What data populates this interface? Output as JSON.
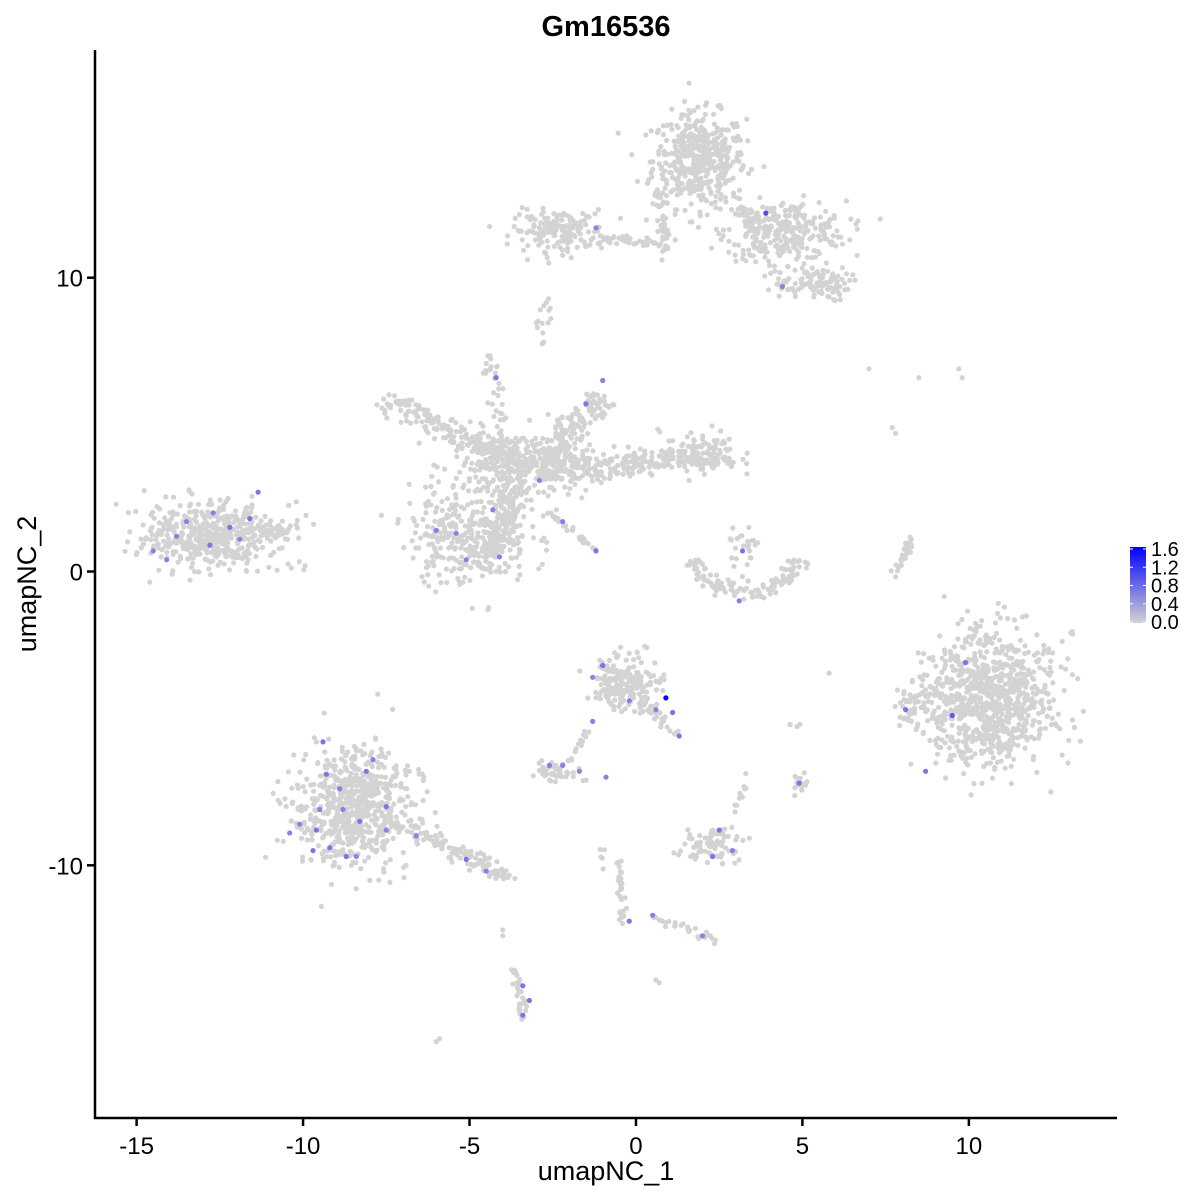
{
  "chart_data": {
    "type": "scatter",
    "title": "Gm16536",
    "xlabel": "umapNC_1",
    "ylabel": "umapNC_2",
    "xlim": [
      -16.25,
      14.45
    ],
    "ylim": [
      -18.6,
      17.75
    ],
    "xticks": [
      -15,
      -10,
      -5,
      0,
      5,
      10
    ],
    "xtick_labels": [
      "-15",
      "-10",
      "-5",
      "0",
      "5",
      "10"
    ],
    "yticks": [
      -10,
      0,
      10
    ],
    "ytick_labels": [
      "-10",
      "0",
      "10"
    ],
    "grid": false,
    "legend": {
      "placement": "right",
      "type": "colorbar",
      "min": 0,
      "max": 1.6,
      "ticks": [
        "0.0",
        "0.4",
        "0.8",
        "1.2",
        "1.6"
      ],
      "low_color": "#D3D3D3",
      "high_color": "#0000FF"
    },
    "clusters": [
      {
        "shape": "blob",
        "center": [
          1.9,
          14.0
        ],
        "sd": [
          0.7,
          0.8
        ],
        "n": 450,
        "value": 0
      },
      {
        "shape": "blob",
        "center": [
          4.5,
          11.6
        ],
        "sd": [
          0.9,
          0.5
        ],
        "n": 280,
        "value": 0
      },
      {
        "shape": "blob",
        "center": [
          5.4,
          9.8
        ],
        "sd": [
          0.5,
          0.3
        ],
        "n": 90,
        "value": 0
      },
      {
        "shape": "line",
        "from": [
          3.0,
          12.8
        ],
        "to": [
          4.5,
          9.5
        ],
        "width": 0.35,
        "n": 60,
        "value": 0
      },
      {
        "shape": "blob",
        "center": [
          -2.3,
          11.6
        ],
        "sd": [
          0.7,
          0.35
        ],
        "n": 170,
        "value": 0
      },
      {
        "shape": "line",
        "from": [
          -1.0,
          11.3
        ],
        "to": [
          0.8,
          11.2
        ],
        "width": 0.15,
        "n": 40,
        "value": 0
      },
      {
        "shape": "line",
        "from": [
          0.7,
          13.0
        ],
        "to": [
          0.9,
          10.8
        ],
        "width": 0.2,
        "n": 40,
        "value": 0
      },
      {
        "shape": "blob",
        "center": [
          -2.8,
          8.7
        ],
        "sd": [
          0.15,
          0.4
        ],
        "n": 15,
        "value": 0
      },
      {
        "shape": "blob",
        "center": [
          -3.5,
          3.6
        ],
        "sd": [
          1.0,
          0.6
        ],
        "n": 300,
        "value": 0
      },
      {
        "shape": "line",
        "from": [
          -3.5,
          3.6
        ],
        "to": [
          -7.5,
          5.8
        ],
        "width": 0.45,
        "n": 200,
        "value": 0
      },
      {
        "shape": "line",
        "from": [
          -4.0,
          4.0
        ],
        "to": [
          -4.4,
          7.5
        ],
        "width": 0.2,
        "n": 40,
        "value": 0
      },
      {
        "shape": "line",
        "from": [
          -3.0,
          3.4
        ],
        "to": [
          -1.0,
          6.0
        ],
        "width": 0.5,
        "n": 180,
        "value": 0
      },
      {
        "shape": "line",
        "from": [
          -2.5,
          3.4
        ],
        "to": [
          2.5,
          4.0
        ],
        "width": 0.5,
        "n": 240,
        "value": 0
      },
      {
        "shape": "blob",
        "center": [
          1.9,
          4.0
        ],
        "sd": [
          0.6,
          0.4
        ],
        "n": 90,
        "value": 0
      },
      {
        "shape": "blob",
        "center": [
          -5.0,
          1.2
        ],
        "sd": [
          0.9,
          0.8
        ],
        "n": 330,
        "value": 0
      },
      {
        "shape": "line",
        "from": [
          -3.5,
          3.0
        ],
        "to": [
          -4.5,
          0.5
        ],
        "width": 0.45,
        "n": 120,
        "value": 0
      },
      {
        "shape": "line",
        "from": [
          -2.6,
          2.0
        ],
        "to": [
          -1.2,
          0.7
        ],
        "width": 0.08,
        "n": 25,
        "value": 0
      },
      {
        "shape": "blob",
        "center": [
          -12.7,
          1.2
        ],
        "sd": [
          1.0,
          0.55
        ],
        "n": 480,
        "value": 0
      },
      {
        "shape": "line",
        "from": [
          -11.5,
          1.3
        ],
        "to": [
          -10.5,
          1.4
        ],
        "width": 0.2,
        "n": 30,
        "value": 0
      },
      {
        "shape": "arc",
        "center": [
          3.3,
          0.6
        ],
        "radius": 1.6,
        "angles": [
          190,
          350
        ],
        "width": 0.35,
        "n": 130,
        "value": 0
      },
      {
        "shape": "blob",
        "center": [
          3.2,
          0.8
        ],
        "sd": [
          0.25,
          0.4
        ],
        "n": 25,
        "value": 0
      },
      {
        "shape": "line",
        "from": [
          8.3,
          1.2
        ],
        "to": [
          7.7,
          -0.3
        ],
        "width": 0.12,
        "n": 30,
        "value": 0
      },
      {
        "shape": "blob",
        "center": [
          10.6,
          -4.3
        ],
        "sd": [
          1.0,
          1.1
        ],
        "n": 900,
        "value": 0
      },
      {
        "shape": "blob",
        "center": [
          8.2,
          -4.7
        ],
        "sd": [
          0.3,
          0.4
        ],
        "n": 40,
        "value": 0
      },
      {
        "shape": "blob",
        "center": [
          -8.5,
          -8.0
        ],
        "sd": [
          0.85,
          1.0
        ],
        "n": 650,
        "value": 0
      },
      {
        "shape": "line",
        "from": [
          -7.3,
          -8.5
        ],
        "to": [
          -3.8,
          -10.4
        ],
        "width": 0.3,
        "n": 120,
        "value": 0
      },
      {
        "shape": "blob",
        "center": [
          -0.3,
          -3.8
        ],
        "sd": [
          0.5,
          0.45
        ],
        "n": 200,
        "value": 0
      },
      {
        "shape": "line",
        "from": [
          0.2,
          -4.5
        ],
        "to": [
          1.3,
          -5.6
        ],
        "width": 0.2,
        "n": 25,
        "value": 0
      },
      {
        "shape": "line",
        "from": [
          -1.3,
          -5.0
        ],
        "to": [
          -2.0,
          -6.5
        ],
        "width": 0.12,
        "n": 15,
        "value": 0
      },
      {
        "shape": "blob",
        "center": [
          -2.4,
          -6.8
        ],
        "sd": [
          0.3,
          0.15
        ],
        "n": 45,
        "value": 0
      },
      {
        "shape": "blob",
        "center": [
          2.2,
          -9.3
        ],
        "sd": [
          0.4,
          0.3
        ],
        "n": 80,
        "value": 0
      },
      {
        "shape": "line",
        "from": [
          2.8,
          -8.8
        ],
        "to": [
          3.4,
          -6.8
        ],
        "width": 0.1,
        "n": 12,
        "value": 0
      },
      {
        "shape": "line",
        "from": [
          -0.5,
          -9.8
        ],
        "to": [
          -0.4,
          -12.0
        ],
        "width": 0.12,
        "n": 30,
        "value": 0
      },
      {
        "shape": "line",
        "from": [
          0.4,
          -11.7
        ],
        "to": [
          2.5,
          -12.6
        ],
        "width": 0.12,
        "n": 30,
        "value": 0
      },
      {
        "shape": "blob",
        "center": [
          5.0,
          -7.2
        ],
        "sd": [
          0.12,
          0.15
        ],
        "n": 20,
        "value": 0
      },
      {
        "shape": "line",
        "from": [
          -3.6,
          -13.6
        ],
        "to": [
          -3.4,
          -15.2
        ],
        "width": 0.15,
        "n": 30,
        "value": 0
      },
      {
        "shape": "blob",
        "center": [
          -1.0,
          -9.5
        ],
        "sd": [
          0.1,
          0.3
        ],
        "n": 5,
        "value": 0
      },
      {
        "shape": "blob",
        "center": [
          4.5,
          -5.2
        ],
        "sd": [
          0.15,
          0.05
        ],
        "n": 4,
        "value": 0
      },
      {
        "shape": "points",
        "xy": [
          [
            7.0,
            6.9
          ],
          [
            8.5,
            6.6
          ],
          [
            9.7,
            6.9
          ],
          [
            9.8,
            6.6
          ],
          [
            7.7,
            4.9
          ],
          [
            7.8,
            4.7
          ],
          [
            -6.0,
            -16.0
          ],
          [
            -5.9,
            -15.9
          ],
          [
            0.7,
            -14.0
          ],
          [
            0.6,
            -13.9
          ],
          [
            -4.0,
            -12.2
          ],
          [
            -4.0,
            -12.4
          ],
          [
            -1.5,
            -7.1
          ]
        ],
        "value": 0
      }
    ],
    "expressing_points": [
      {
        "x": 3.9,
        "y": 12.2,
        "value": 1.0
      },
      {
        "x": 4.4,
        "y": 9.7,
        "value": 0.6
      },
      {
        "x": -1.2,
        "y": 11.7,
        "value": 0.6
      },
      {
        "x": -4.2,
        "y": 6.6,
        "value": 0.7
      },
      {
        "x": -1.5,
        "y": 5.7,
        "value": 0.7
      },
      {
        "x": -1.0,
        "y": 6.5,
        "value": 0.6
      },
      {
        "x": -2.9,
        "y": 3.1,
        "value": 0.6
      },
      {
        "x": -4.3,
        "y": 2.1,
        "value": 0.6
      },
      {
        "x": -2.2,
        "y": 1.7,
        "value": 0.6
      },
      {
        "x": -1.2,
        "y": 0.7,
        "value": 0.7
      },
      {
        "x": -6.0,
        "y": 1.4,
        "value": 0.6
      },
      {
        "x": -5.4,
        "y": 1.3,
        "value": 0.6
      },
      {
        "x": -5.1,
        "y": 0.4,
        "value": 0.6
      },
      {
        "x": -4.1,
        "y": 0.5,
        "value": 0.6
      },
      {
        "x": -11.35,
        "y": 2.7,
        "value": 0.7
      },
      {
        "x": -13.5,
        "y": 1.7,
        "value": 0.6
      },
      {
        "x": -12.7,
        "y": 2.0,
        "value": 0.6
      },
      {
        "x": -12.2,
        "y": 1.5,
        "value": 0.7
      },
      {
        "x": -11.9,
        "y": 1.1,
        "value": 0.6
      },
      {
        "x": -12.8,
        "y": 0.9,
        "value": 0.7
      },
      {
        "x": -13.8,
        "y": 1.2,
        "value": 0.6
      },
      {
        "x": -14.5,
        "y": 0.7,
        "value": 0.6
      },
      {
        "x": -14.1,
        "y": 0.4,
        "value": 0.6
      },
      {
        "x": -11.6,
        "y": 1.8,
        "value": 0.7
      },
      {
        "x": 3.2,
        "y": 0.7,
        "value": 0.7
      },
      {
        "x": 3.1,
        "y": -1.0,
        "value": 0.6
      },
      {
        "x": 0.9,
        "y": -4.3,
        "value": 1.6
      },
      {
        "x": -1.0,
        "y": -3.2,
        "value": 0.7
      },
      {
        "x": -1.3,
        "y": -3.6,
        "value": 0.6
      },
      {
        "x": -0.2,
        "y": -4.4,
        "value": 0.6
      },
      {
        "x": 0.6,
        "y": -4.7,
        "value": 0.6
      },
      {
        "x": 1.1,
        "y": -4.8,
        "value": 0.7
      },
      {
        "x": 1.3,
        "y": -5.6,
        "value": 0.7
      },
      {
        "x": -1.3,
        "y": -5.1,
        "value": 0.6
      },
      {
        "x": 9.9,
        "y": -3.1,
        "value": 0.7
      },
      {
        "x": 9.5,
        "y": -4.9,
        "value": 0.9
      },
      {
        "x": 8.1,
        "y": -4.7,
        "value": 0.7
      },
      {
        "x": 8.7,
        "y": -6.8,
        "value": 0.7
      },
      {
        "x": 4.9,
        "y": -7.2,
        "value": 0.7
      },
      {
        "x": -0.9,
        "y": -7.0,
        "value": 0.6
      },
      {
        "x": -2.6,
        "y": -6.6,
        "value": 0.6
      },
      {
        "x": -2.2,
        "y": -6.6,
        "value": 0.6
      },
      {
        "x": -1.7,
        "y": -6.8,
        "value": 0.6
      },
      {
        "x": 2.5,
        "y": -8.8,
        "value": 0.7
      },
      {
        "x": 2.3,
        "y": -9.7,
        "value": 0.7
      },
      {
        "x": 2.9,
        "y": -9.5,
        "value": 0.6
      },
      {
        "x": -0.2,
        "y": -11.9,
        "value": 0.7
      },
      {
        "x": 0.5,
        "y": -11.7,
        "value": 0.6
      },
      {
        "x": 2.0,
        "y": -12.4,
        "value": 0.6
      },
      {
        "x": -3.4,
        "y": -14.1,
        "value": 0.7
      },
      {
        "x": -3.4,
        "y": -15.1,
        "value": 0.7
      },
      {
        "x": -3.2,
        "y": -14.6,
        "value": 0.7
      },
      {
        "x": -9.4,
        "y": -5.8,
        "value": 0.7
      },
      {
        "x": -9.3,
        "y": -6.9,
        "value": 0.7
      },
      {
        "x": -8.9,
        "y": -7.4,
        "value": 0.6
      },
      {
        "x": -8.1,
        "y": -6.8,
        "value": 0.7
      },
      {
        "x": -8.8,
        "y": -8.1,
        "value": 0.6
      },
      {
        "x": -8.3,
        "y": -8.5,
        "value": 0.7
      },
      {
        "x": -7.5,
        "y": -8.0,
        "value": 0.7
      },
      {
        "x": -10.1,
        "y": -8.6,
        "value": 0.6
      },
      {
        "x": -9.6,
        "y": -8.8,
        "value": 0.7
      },
      {
        "x": -10.4,
        "y": -8.9,
        "value": 0.6
      },
      {
        "x": -9.2,
        "y": -9.4,
        "value": 0.7
      },
      {
        "x": -9.7,
        "y": -9.5,
        "value": 0.7
      },
      {
        "x": -8.4,
        "y": -9.7,
        "value": 0.6
      },
      {
        "x": -8.7,
        "y": -9.7,
        "value": 0.7
      },
      {
        "x": -7.5,
        "y": -8.8,
        "value": 0.6
      },
      {
        "x": -6.6,
        "y": -9.0,
        "value": 0.6
      },
      {
        "x": -5.1,
        "y": -9.8,
        "value": 0.7
      },
      {
        "x": -4.5,
        "y": -10.2,
        "value": 0.6
      },
      {
        "x": -7.9,
        "y": -6.4,
        "value": 0.6
      },
      {
        "x": -9.5,
        "y": -8.1,
        "value": 0.6
      }
    ]
  }
}
